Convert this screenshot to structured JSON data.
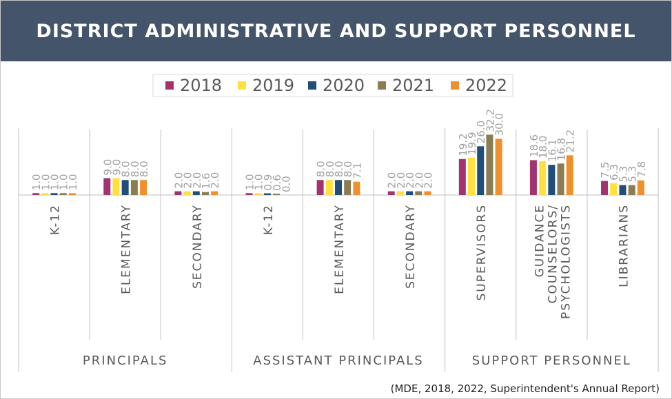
{
  "header": {
    "title": "DISTRICT ADMINISTRATIVE AND SUPPORT PERSONNEL"
  },
  "caption": "(MDE, 2018, 2022, Superintendent's Annual Report)",
  "colors": {
    "header_bg": "#44546a",
    "series": [
      "#a3336f",
      "#ffe03c",
      "#1f4e79",
      "#8b7d51",
      "#f0902c"
    ],
    "value_label": "#a0a0a0",
    "axis": "#bfbfbf"
  },
  "chart_data": {
    "type": "bar",
    "title": "DISTRICT ADMINISTRATIVE AND SUPPORT PERSONNEL",
    "legend_position": "top-center",
    "value_labels": true,
    "ylim": [
      0,
      35
    ],
    "groups": [
      {
        "name": "PRINCIPALS",
        "categories": [
          {
            "label": [
              "K-12"
            ],
            "values": [
              1.0,
              1.0,
              1.0,
              1.0,
              1.0
            ]
          },
          {
            "label": [
              "ELEMENTARY"
            ],
            "values": [
              9.0,
              9.0,
              8.0,
              8.0,
              8.0
            ]
          },
          {
            "label": [
              "SECONDARY"
            ],
            "values": [
              2.0,
              2.0,
              2.0,
              1.6,
              2.0
            ]
          }
        ]
      },
      {
        "name": "ASSISTANT PRINCIPALS",
        "categories": [
          {
            "label": [
              "K-12"
            ],
            "values": [
              1.0,
              1.0,
              0.9,
              0.6,
              0.0
            ]
          },
          {
            "label": [
              "ELEMENTARY"
            ],
            "values": [
              8.0,
              8.0,
              8.0,
              8.0,
              7.1
            ]
          },
          {
            "label": [
              "SECONDARY"
            ],
            "values": [
              2.0,
              2.0,
              2.0,
              2.0,
              2.0
            ]
          }
        ]
      },
      {
        "name": "SUPPORT PERSONNEL",
        "categories": [
          {
            "label": [
              "SUPERVISORS"
            ],
            "values": [
              19.2,
              19.9,
              26.0,
              32.2,
              30.0
            ]
          },
          {
            "label": [
              "GUIDANCE",
              "COUNSELORS/",
              "PSYCHOLOGISTS"
            ],
            "values": [
              18.6,
              18.0,
              16.1,
              16.8,
              21.2
            ]
          },
          {
            "label": [
              "LIBRARIANS"
            ],
            "values": [
              7.5,
              6.3,
              5.3,
              5.3,
              7.8
            ]
          }
        ]
      }
    ],
    "series": [
      {
        "name": "2018"
      },
      {
        "name": "2019"
      },
      {
        "name": "2020"
      },
      {
        "name": "2021"
      },
      {
        "name": "2022"
      }
    ]
  }
}
